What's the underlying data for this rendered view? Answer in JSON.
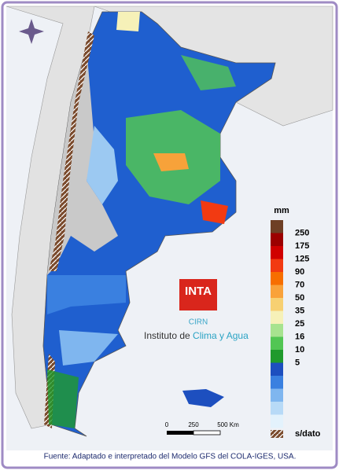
{
  "legend": {
    "title": "mm",
    "swatches": [
      "#6e3f25",
      "#9c0000",
      "#d00000",
      "#f23a12",
      "#f76e00",
      "#f9a23a",
      "#f7d072",
      "#f6f1b8",
      "#a7e38f",
      "#52c653",
      "#1f9a2c",
      "#1d4fbf",
      "#3a80e0",
      "#7fb6ef",
      "#b7daf7",
      "#e3f2fc"
    ],
    "labels": [
      "250",
      "175",
      "125",
      "90",
      "70",
      "50",
      "35",
      "25",
      "16",
      "10",
      "5"
    ],
    "no_data": "s/dato"
  },
  "logo": {
    "name": "INTA",
    "unit": "CIRN",
    "institute_prefix": "Instituto de ",
    "institute_highlight": "Clima y Agua"
  },
  "scale_bar": {
    "labels": [
      "0",
      "250",
      "500 Km"
    ]
  },
  "source": "Fuente: Adaptado e interpretado del Modelo GFS del COLA-IGES, USA."
}
